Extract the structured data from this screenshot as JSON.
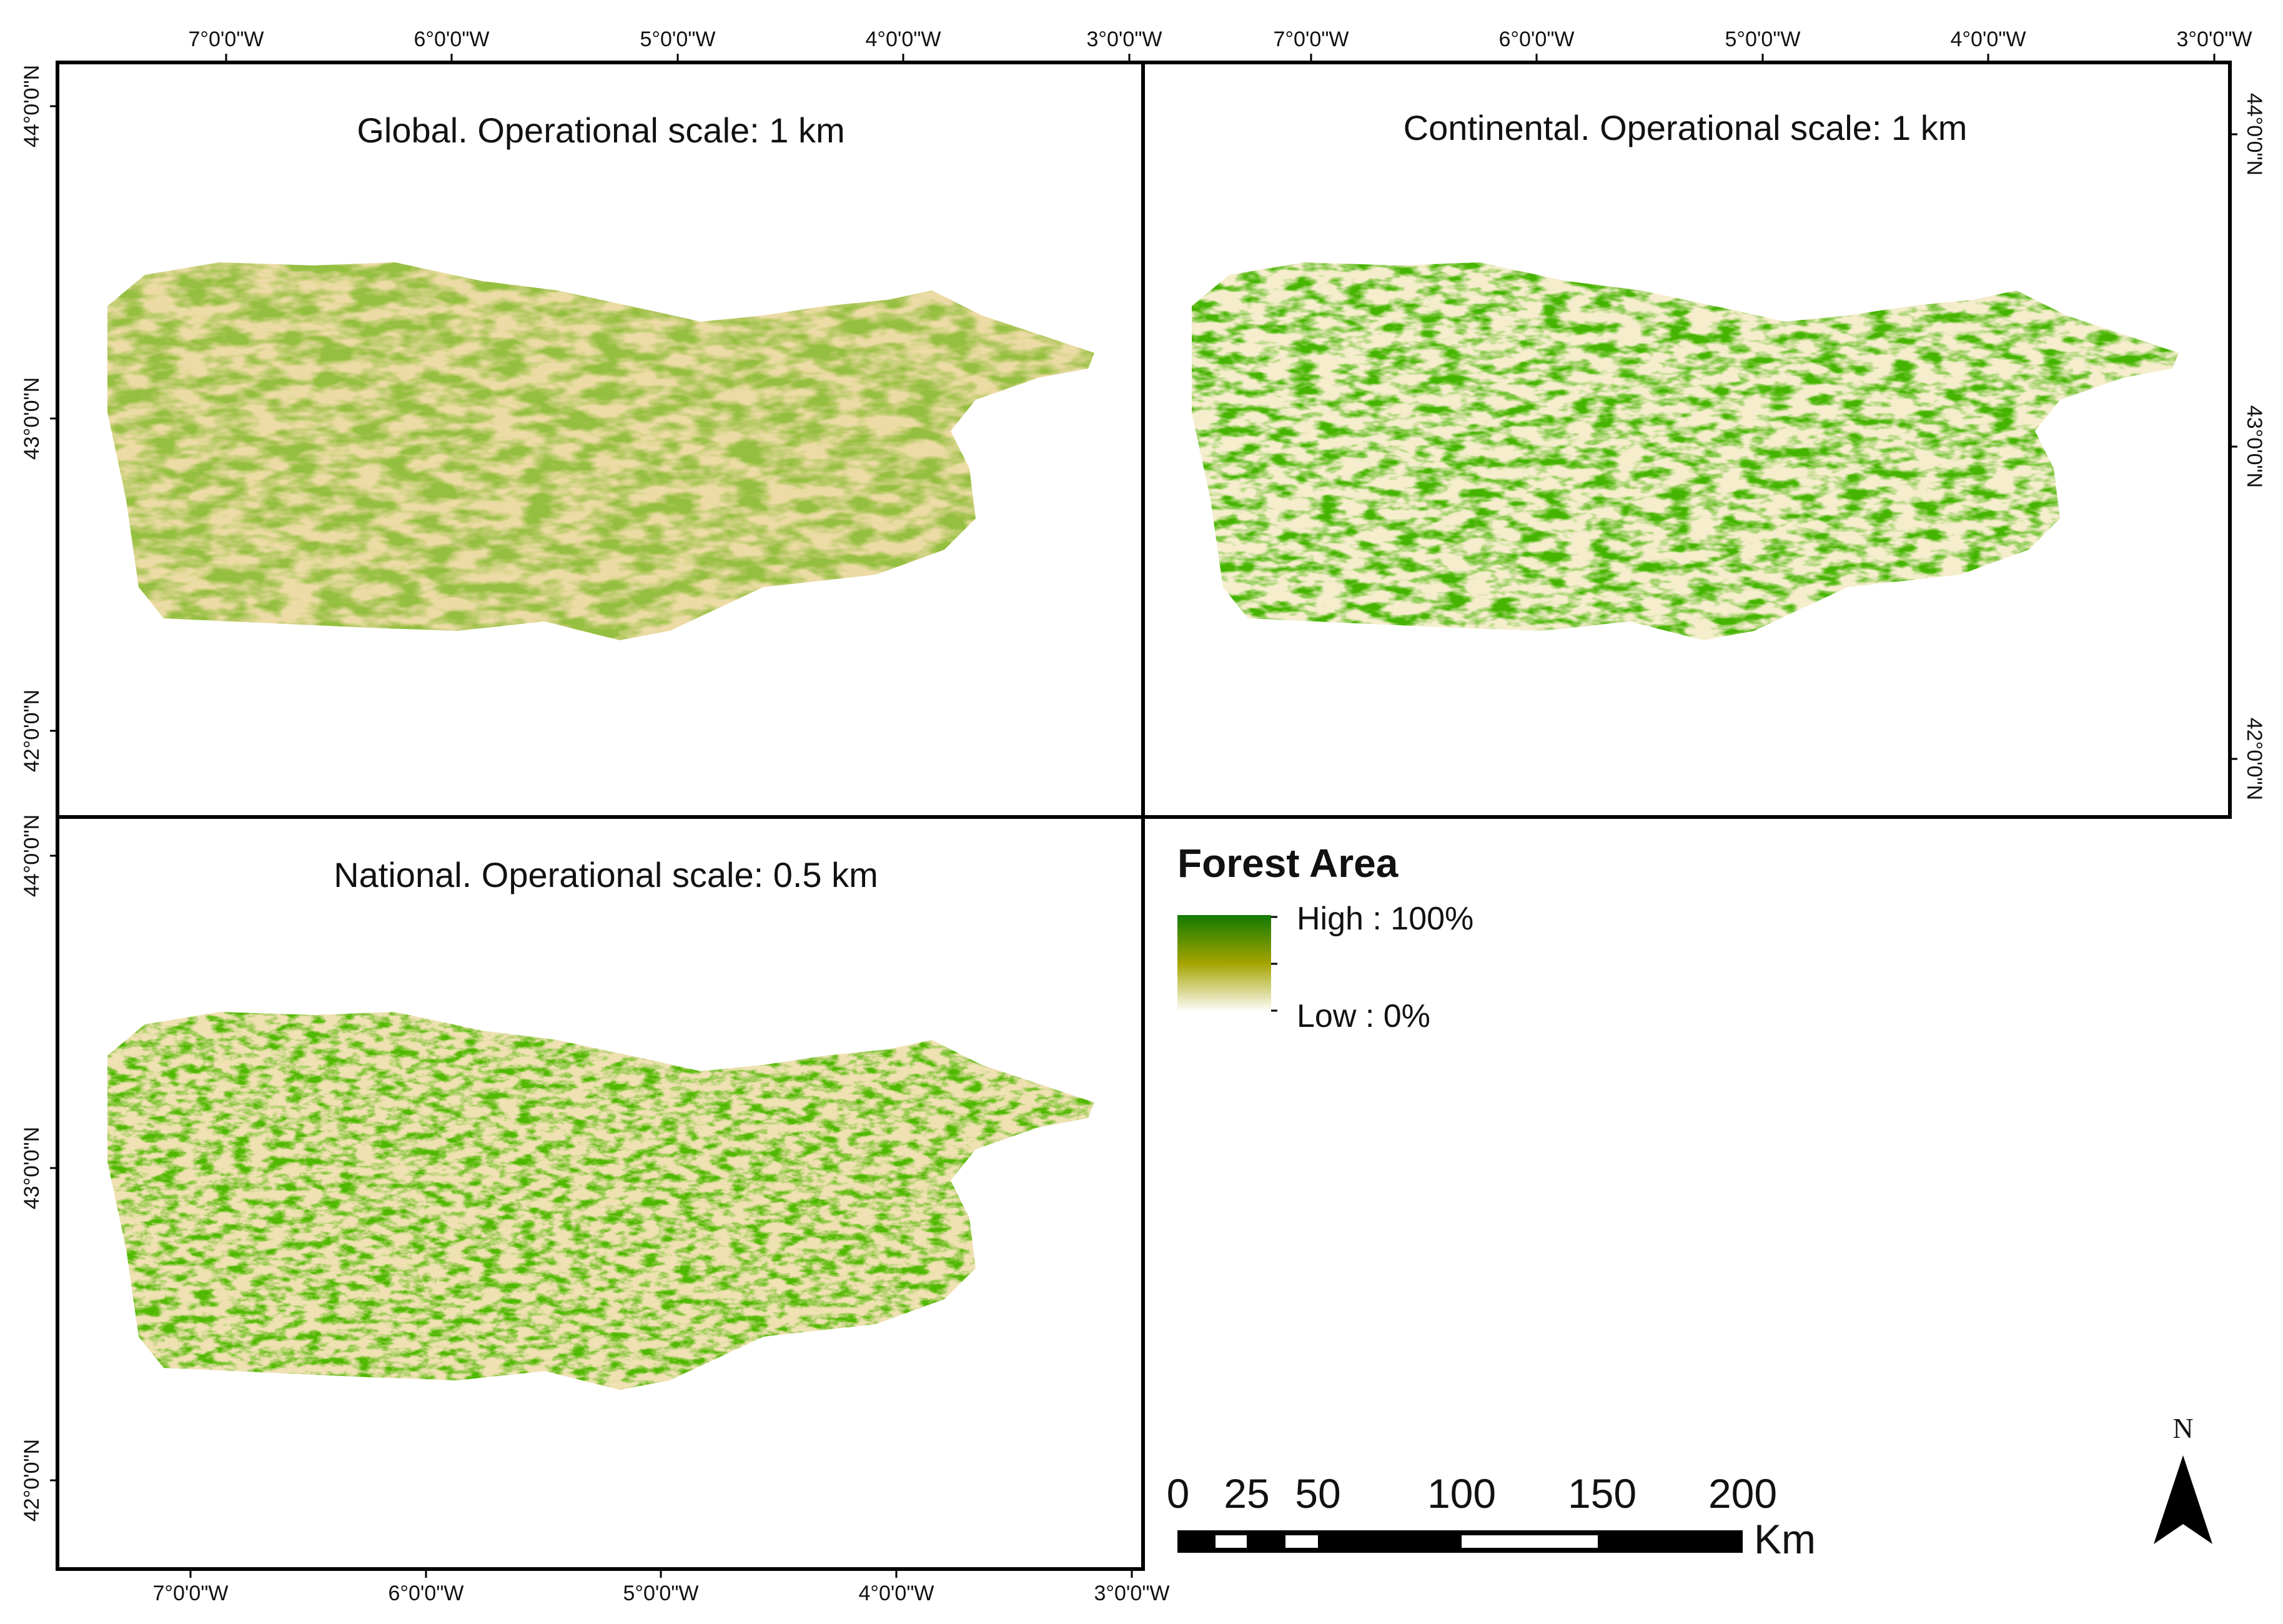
{
  "panels": [
    {
      "id": "global",
      "title": "Global. Operational scale: 1 km",
      "lon_labels_top": [
        "7°0'0\"W",
        "6°0'0\"W",
        "5°0'0\"W",
        "4°0'0\"W",
        "3°0'0\"W"
      ],
      "lat_labels_left": [
        "44°0'0\"N",
        "43°0'0\"N",
        "42°0'0\"N"
      ]
    },
    {
      "id": "continental",
      "title": "Continental. Operational scale: 1 km",
      "lon_labels_top": [
        "7°0'0\"W",
        "6°0'0\"W",
        "5°0'0\"W",
        "4°0'0\"W",
        "3°0'0\"W"
      ],
      "lat_labels_right": [
        "44°0'0\"N",
        "43°0'0\"N",
        "42°0'0\"N"
      ]
    },
    {
      "id": "national",
      "title": "National. Operational scale: 0.5 km",
      "lon_labels_bottom": [
        "7°0'0\"W",
        "6°0'0\"W",
        "5°0'0\"W",
        "4°0'0\"W",
        "3°0'0\"W"
      ],
      "lat_labels_left": [
        "44°0'0\"N",
        "43°0'0\"N",
        "42°0'0\"N"
      ]
    }
  ],
  "legend": {
    "title": "Forest Area",
    "high_label": "High : 100%",
    "low_label": "Low : 0%",
    "color_high": "#127a00",
    "color_mid": "#a6a400",
    "color_low": "#ffffff"
  },
  "scale_bar": {
    "labels": [
      "0",
      "25",
      "50",
      "100",
      "150",
      "200"
    ],
    "unit": "Km"
  },
  "north_arrow": {
    "letter": "N"
  }
}
